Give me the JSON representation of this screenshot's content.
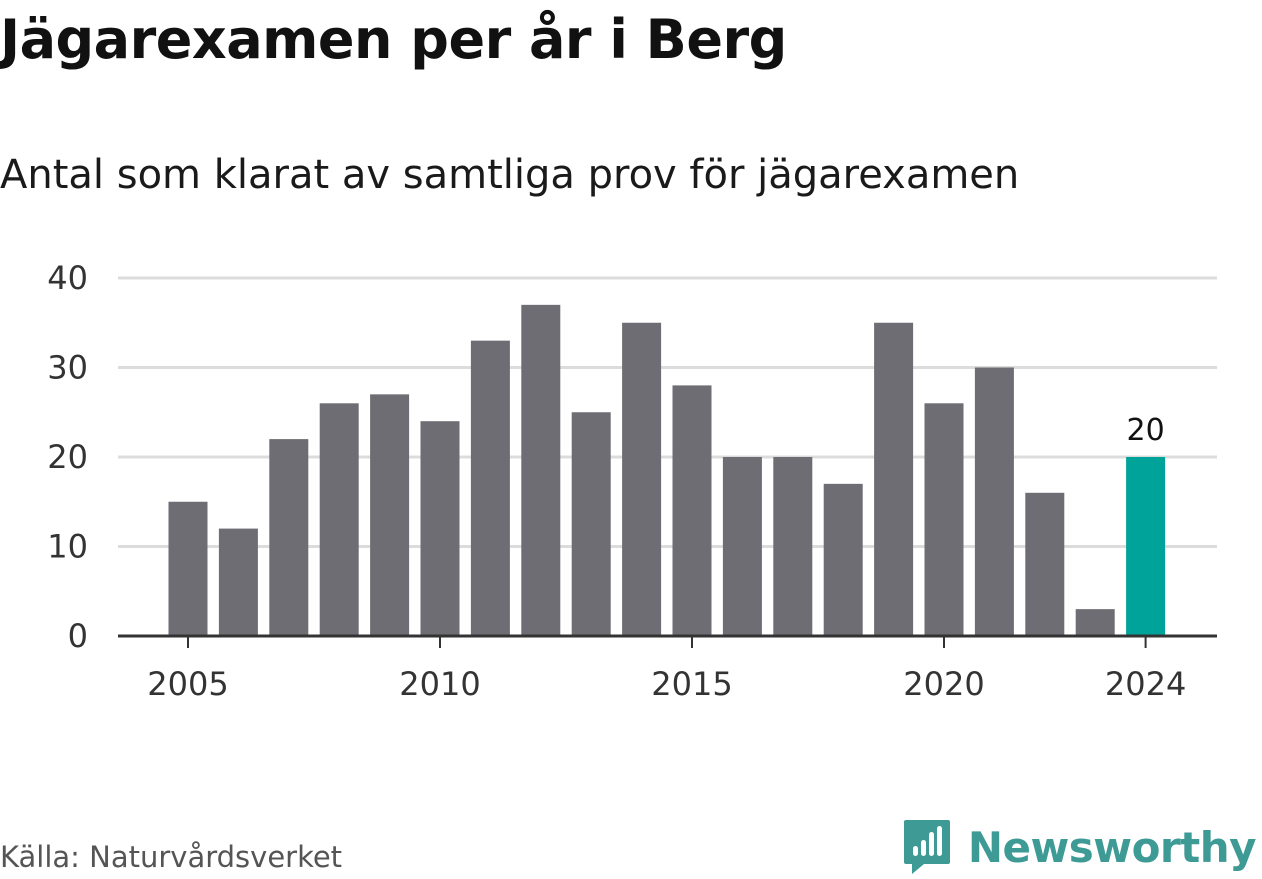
{
  "title": "Jägarexamen per år i Berg",
  "subtitle": "Antal som klarat av samtliga prov för jägarexamen",
  "source": "Källa: Naturvårdsverket",
  "brand": {
    "name": "Newsworthy",
    "icon": "newsworthy-logo-icon",
    "color": "#3e9a95"
  },
  "chart_data": {
    "type": "bar",
    "title": "Jägarexamen per år i Berg",
    "subtitle": "Antal som klarat av samtliga prov för jägarexamen",
    "xlabel": "",
    "ylabel": "",
    "categories": [
      2005,
      2006,
      2007,
      2008,
      2009,
      2010,
      2011,
      2012,
      2013,
      2014,
      2015,
      2016,
      2017,
      2018,
      2019,
      2020,
      2021,
      2022,
      2023,
      2024
    ],
    "values": [
      15,
      12,
      22,
      26,
      27,
      24,
      33,
      37,
      25,
      35,
      28,
      20,
      20,
      17,
      35,
      26,
      30,
      16,
      3,
      20
    ],
    "ylim": [
      0,
      40
    ],
    "yticks": [
      0,
      10,
      20,
      30,
      40
    ],
    "xticks": [
      2005,
      2010,
      2015,
      2020,
      2024
    ],
    "highlight": {
      "category": 2024,
      "label": "20",
      "color": "#00a39a"
    },
    "bar_color": "#6e6d73",
    "grid": true,
    "legend": "none"
  }
}
